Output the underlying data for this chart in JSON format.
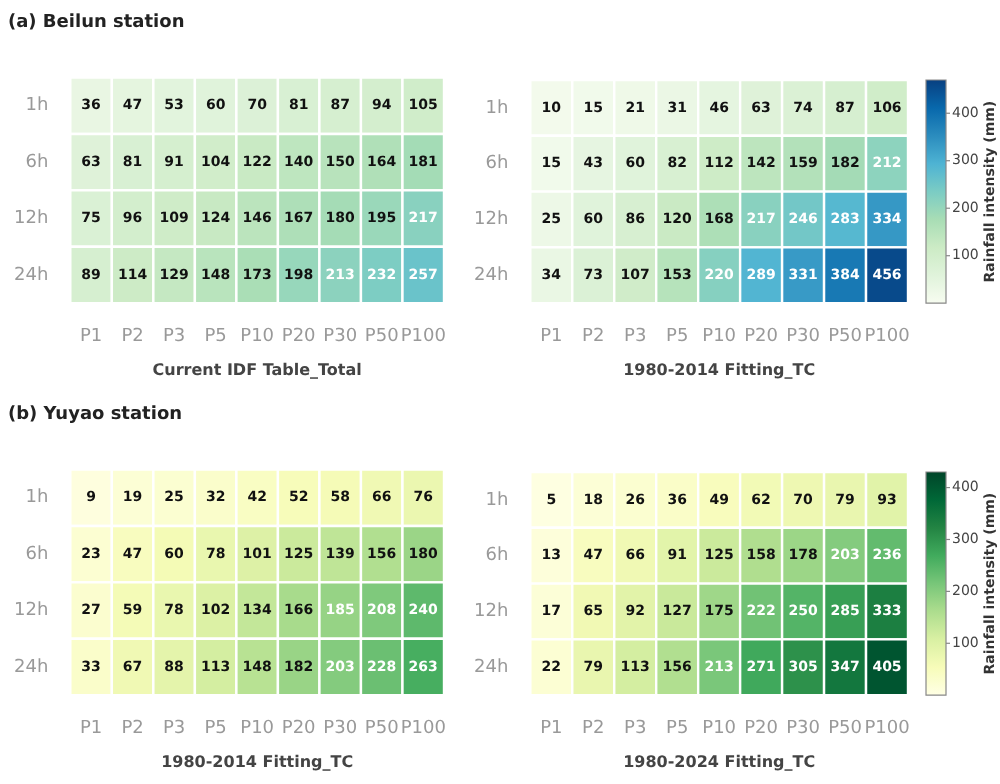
{
  "chart_data": [
    {
      "type": "heatmap",
      "title": "(a) Beilun station",
      "xlabel": "Current IDF Table_Total",
      "color": "#084081",
      "categories": [
        "P1",
        "P2",
        "P3",
        "P5",
        "P10",
        "P20",
        "P30",
        "P50",
        "P100"
      ],
      "y_categories": [
        "1h",
        "6h",
        "12h",
        "24h"
      ],
      "cells": [
        [
          36,
          47,
          53,
          60,
          70,
          81,
          87,
          94,
          105
        ],
        [
          63,
          81,
          91,
          104,
          122,
          140,
          150,
          164,
          181
        ],
        [
          75,
          96,
          109,
          124,
          146,
          167,
          180,
          195,
          217
        ],
        [
          89,
          114,
          129,
          148,
          173,
          198,
          213,
          232,
          257
        ]
      ],
      "data_labels": true
    },
    {
      "type": "heatmap",
      "xlabel": "1980-2014 Fitting_TC",
      "color": "#084081",
      "categories": [
        "P1",
        "P2",
        "P3",
        "P5",
        "P10",
        "P20",
        "P30",
        "P50",
        "P100"
      ],
      "y_categories": [
        "1h",
        "6h",
        "12h",
        "24h"
      ],
      "cells": [
        [
          10,
          15,
          21,
          31,
          46,
          63,
          74,
          87,
          106
        ],
        [
          15,
          43,
          60,
          82,
          112,
          142,
          159,
          182,
          212
        ],
        [
          25,
          60,
          86,
          120,
          168,
          217,
          246,
          283,
          334
        ],
        [
          34,
          73,
          107,
          153,
          220,
          289,
          331,
          384,
          456
        ]
      ],
      "clim": [
        0,
        470
      ],
      "cticks": [
        100,
        200,
        300,
        400
      ],
      "clabel": "Rainfall intensity (mm)",
      "data_labels": true
    },
    {
      "type": "heatmap",
      "title": "(b) Yuyao station",
      "xlabel": "1980-2014 Fitting_TC",
      "color": "#004529",
      "categories": [
        "P1",
        "P2",
        "P3",
        "P5",
        "P10",
        "P20",
        "P30",
        "P50",
        "P100"
      ],
      "y_categories": [
        "1h",
        "6h",
        "12h",
        "24h"
      ],
      "cells": [
        [
          9,
          19,
          25,
          32,
          42,
          52,
          58,
          66,
          76
        ],
        [
          23,
          47,
          60,
          78,
          101,
          125,
          139,
          156,
          180
        ],
        [
          27,
          59,
          78,
          102,
          134,
          166,
          185,
          208,
          240
        ],
        [
          33,
          67,
          88,
          113,
          148,
          182,
          203,
          228,
          263
        ]
      ],
      "data_labels": true
    },
    {
      "type": "heatmap",
      "xlabel": "1980-2024 Fitting_TC",
      "color": "#004529",
      "categories": [
        "P1",
        "P2",
        "P3",
        "P5",
        "P10",
        "P20",
        "P30",
        "P50",
        "P100"
      ],
      "y_categories": [
        "1h",
        "6h",
        "12h",
        "24h"
      ],
      "cells": [
        [
          5,
          18,
          26,
          36,
          49,
          62,
          70,
          79,
          93
        ],
        [
          13,
          47,
          66,
          91,
          125,
          158,
          178,
          203,
          236
        ],
        [
          17,
          65,
          92,
          127,
          175,
          222,
          250,
          285,
          333
        ],
        [
          22,
          79,
          113,
          156,
          213,
          271,
          305,
          347,
          405
        ]
      ],
      "clim": [
        0,
        430
      ],
      "cticks": [
        100,
        200,
        300,
        400
      ],
      "clabel": "Rainfall intensity (mm)",
      "data_labels": true
    }
  ]
}
